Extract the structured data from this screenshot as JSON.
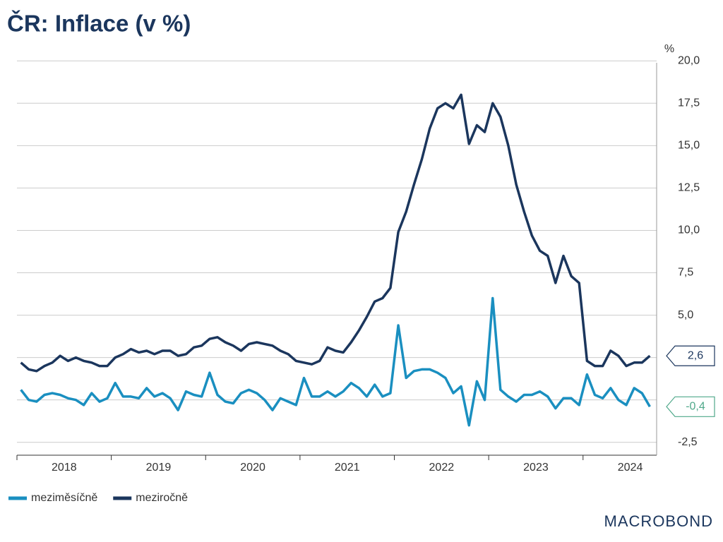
{
  "chart_data": {
    "type": "line",
    "title": "ČR: Inflace (v %)",
    "y_unit": "%",
    "brand": "MACROBOND",
    "x": [
      2018.042,
      2018.125,
      2018.208,
      2018.292,
      2018.375,
      2018.458,
      2018.542,
      2018.625,
      2018.708,
      2018.792,
      2018.875,
      2018.958,
      2019.042,
      2019.125,
      2019.208,
      2019.292,
      2019.375,
      2019.458,
      2019.542,
      2019.625,
      2019.708,
      2019.792,
      2019.875,
      2019.958,
      2020.042,
      2020.125,
      2020.208,
      2020.292,
      2020.375,
      2020.458,
      2020.542,
      2020.625,
      2020.708,
      2020.792,
      2020.875,
      2020.958,
      2021.042,
      2021.125,
      2021.208,
      2021.292,
      2021.375,
      2021.458,
      2021.542,
      2021.625,
      2021.708,
      2021.792,
      2021.875,
      2021.958,
      2022.042,
      2022.125,
      2022.208,
      2022.292,
      2022.375,
      2022.458,
      2022.542,
      2022.625,
      2022.708,
      2022.792,
      2022.875,
      2022.958,
      2023.042,
      2023.125,
      2023.208,
      2023.292,
      2023.375,
      2023.458,
      2023.542,
      2023.625,
      2023.708,
      2023.792,
      2023.875,
      2023.958,
      2024.042,
      2024.125,
      2024.208,
      2024.292,
      2024.375,
      2024.458,
      2024.542,
      2024.625,
      2024.708
    ],
    "series": [
      {
        "name": "meziměsíčně",
        "color": "#1a8fc0",
        "label_color": "#4fa88a",
        "last_value_label": "-0,4",
        "values": [
          0.6,
          0.0,
          -0.1,
          0.3,
          0.4,
          0.3,
          0.1,
          0.0,
          -0.3,
          0.4,
          -0.1,
          0.1,
          1.0,
          0.2,
          0.2,
          0.1,
          0.7,
          0.2,
          0.4,
          0.1,
          -0.6,
          0.5,
          0.3,
          0.2,
          1.6,
          0.3,
          -0.1,
          -0.2,
          0.4,
          0.6,
          0.4,
          0.0,
          -0.6,
          0.1,
          -0.1,
          -0.3,
          1.3,
          0.2,
          0.2,
          0.5,
          0.2,
          0.5,
          1.0,
          0.7,
          0.2,
          0.9,
          0.2,
          0.4,
          4.4,
          1.3,
          1.7,
          1.8,
          1.8,
          1.6,
          1.3,
          0.4,
          0.8,
          -1.5,
          1.1,
          0.0,
          6.0,
          0.6,
          0.2,
          -0.1,
          0.3,
          0.3,
          0.5,
          0.2,
          -0.5,
          0.1,
          0.1,
          -0.3,
          1.5,
          0.3,
          0.1,
          0.7,
          0.0,
          -0.3,
          0.7,
          0.4,
          -0.4
        ]
      },
      {
        "name": "meziročně",
        "color": "#1b365d",
        "label_color": "#1b365d",
        "last_value_label": "2,6",
        "values": [
          2.2,
          1.8,
          1.7,
          2.0,
          2.2,
          2.6,
          2.3,
          2.5,
          2.3,
          2.2,
          2.0,
          2.0,
          2.5,
          2.7,
          3.0,
          2.8,
          2.9,
          2.7,
          2.9,
          2.9,
          2.6,
          2.7,
          3.1,
          3.2,
          3.6,
          3.7,
          3.4,
          3.2,
          2.9,
          3.3,
          3.4,
          3.3,
          3.2,
          2.9,
          2.7,
          2.3,
          2.2,
          2.1,
          2.3,
          3.1,
          2.9,
          2.8,
          3.4,
          4.1,
          4.9,
          5.8,
          6.0,
          6.6,
          9.9,
          11.1,
          12.7,
          14.2,
          16.0,
          17.2,
          17.5,
          17.2,
          18.0,
          15.1,
          16.2,
          15.8,
          17.5,
          16.7,
          15.0,
          12.7,
          11.1,
          9.7,
          8.8,
          8.5,
          6.9,
          8.5,
          7.3,
          6.9,
          2.3,
          2.0,
          2.0,
          2.9,
          2.6,
          2.0,
          2.2,
          2.2,
          2.6
        ]
      }
    ],
    "xlim": [
      2018,
      2024.78
    ],
    "xticks": [
      2018,
      2019,
      2020,
      2021,
      2022,
      2023,
      2024
    ],
    "ylim": [
      -3.26,
      20.3
    ],
    "yticks": [
      {
        "value": -2.5,
        "label": "-2,5"
      },
      {
        "value": 0,
        "label": ""
      },
      {
        "value": 2.5,
        "label": ""
      },
      {
        "value": 5,
        "label": "5,0"
      },
      {
        "value": 7.5,
        "label": "7,5"
      },
      {
        "value": 10,
        "label": "10,0"
      },
      {
        "value": 12.5,
        "label": "12,5"
      },
      {
        "value": 15,
        "label": "15,0"
      },
      {
        "value": 17.5,
        "label": "17,5"
      },
      {
        "value": 20,
        "label": "20,0"
      }
    ],
    "grid": true,
    "legend": "bottom-left"
  }
}
